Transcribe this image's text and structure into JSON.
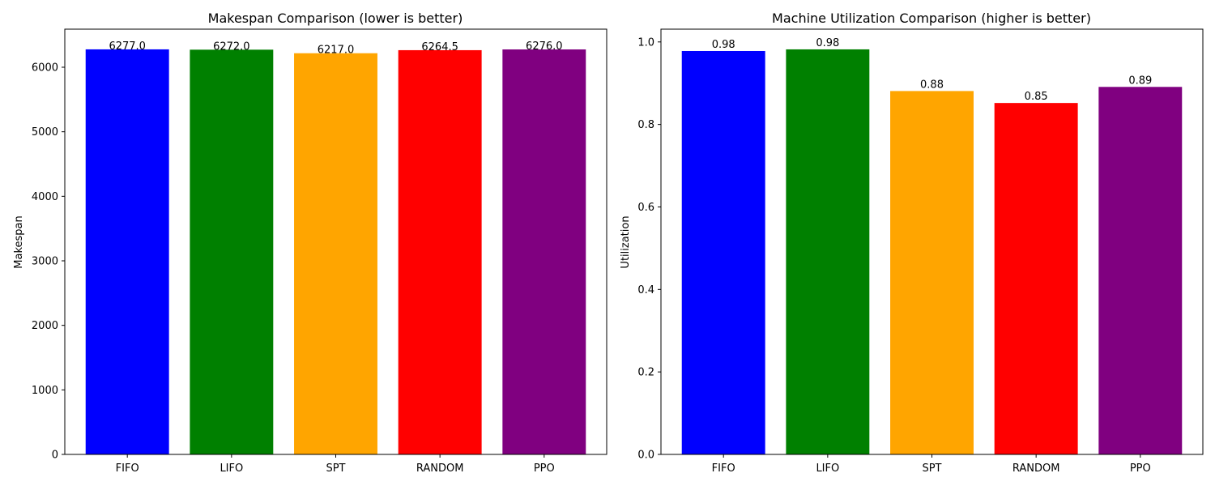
{
  "chart_data": [
    {
      "type": "bar",
      "title": "Makespan Comparison (lower is better)",
      "xlabel": "",
      "ylabel": "Makespan",
      "categories": [
        "FIFO",
        "LIFO",
        "SPT",
        "RANDOM",
        "PPO"
      ],
      "values": [
        6277.0,
        6272.0,
        6217.0,
        6264.5,
        6276.0
      ],
      "value_labels": [
        "6277.0",
        "6272.0",
        "6217.0",
        "6264.5",
        "6276.0"
      ],
      "colors": [
        "#0000ff",
        "#008000",
        "#ffa500",
        "#ff0000",
        "#800080"
      ],
      "ylim": [
        0,
        6590
      ],
      "yticks": [
        0,
        1000,
        2000,
        3000,
        4000,
        5000,
        6000
      ],
      "ytick_labels": [
        "0",
        "1000",
        "2000",
        "3000",
        "4000",
        "5000",
        "6000"
      ],
      "grid": false,
      "legend": "none"
    },
    {
      "type": "bar",
      "title": "Machine Utilization Comparison (higher is better)",
      "xlabel": "",
      "ylabel": "Utilization",
      "categories": [
        "FIFO",
        "LIFO",
        "SPT",
        "RANDOM",
        "PPO"
      ],
      "values": [
        0.978,
        0.982,
        0.881,
        0.852,
        0.891
      ],
      "value_labels": [
        "0.98",
        "0.98",
        "0.88",
        "0.85",
        "0.89"
      ],
      "colors": [
        "#0000ff",
        "#008000",
        "#ffa500",
        "#ff0000",
        "#800080"
      ],
      "ylim": [
        0,
        1.031
      ],
      "yticks": [
        0.0,
        0.2,
        0.4,
        0.6,
        0.8,
        1.0
      ],
      "ytick_labels": [
        "0.0",
        "0.2",
        "0.4",
        "0.6",
        "0.8",
        "1.0"
      ],
      "grid": false,
      "legend": "none"
    }
  ]
}
